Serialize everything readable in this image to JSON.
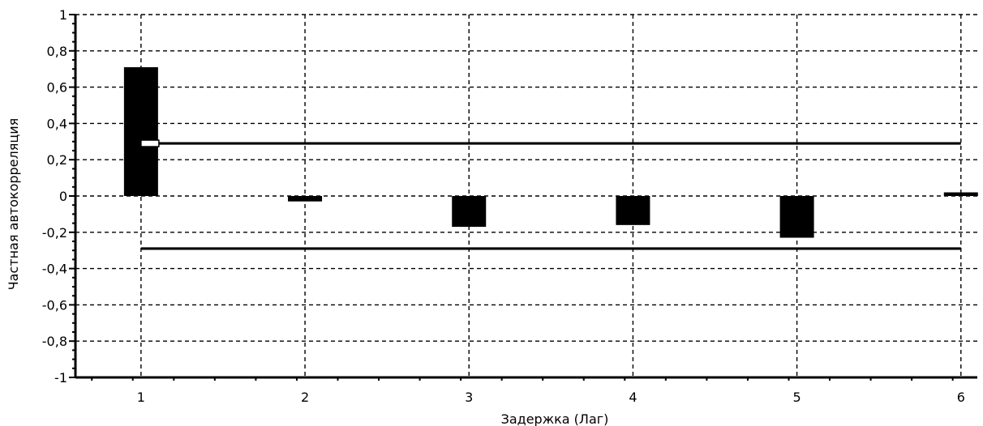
{
  "chart_data": {
    "type": "bar",
    "title": "",
    "xlabel": "Задержка (Лаг)",
    "ylabel": "Частная автокорреляция",
    "categories": [
      1,
      2,
      3,
      4,
      5,
      6
    ],
    "values": [
      0.71,
      -0.03,
      -0.17,
      -0.16,
      -0.23,
      0.02
    ],
    "ylim": [
      -1,
      1
    ],
    "xlim": [
      0.6,
      6.1
    ],
    "y_ticks": [
      "-1",
      "-0,8",
      "-0,6",
      "-0,4",
      "-0,2",
      "0",
      "0,2",
      "0,4",
      "0,6",
      "0,8",
      "1"
    ],
    "y_tick_values": [
      -1,
      -0.8,
      -0.6,
      -0.4,
      -0.2,
      0,
      0.2,
      0.4,
      0.6,
      0.8,
      1
    ],
    "x_ticks": [
      "1",
      "2",
      "3",
      "4",
      "5",
      "6"
    ],
    "x_tick_values": [
      1,
      2,
      3,
      4,
      5,
      6
    ],
    "confidence_bounds": {
      "upper": 0.29,
      "lower": -0.29,
      "from_x": 1,
      "to_x": 6
    },
    "grid": true,
    "legend": "none",
    "colors": {
      "bars": "#000000",
      "grid": "#000000",
      "bounds": "#000000",
      "background": "#ffffff"
    }
  }
}
